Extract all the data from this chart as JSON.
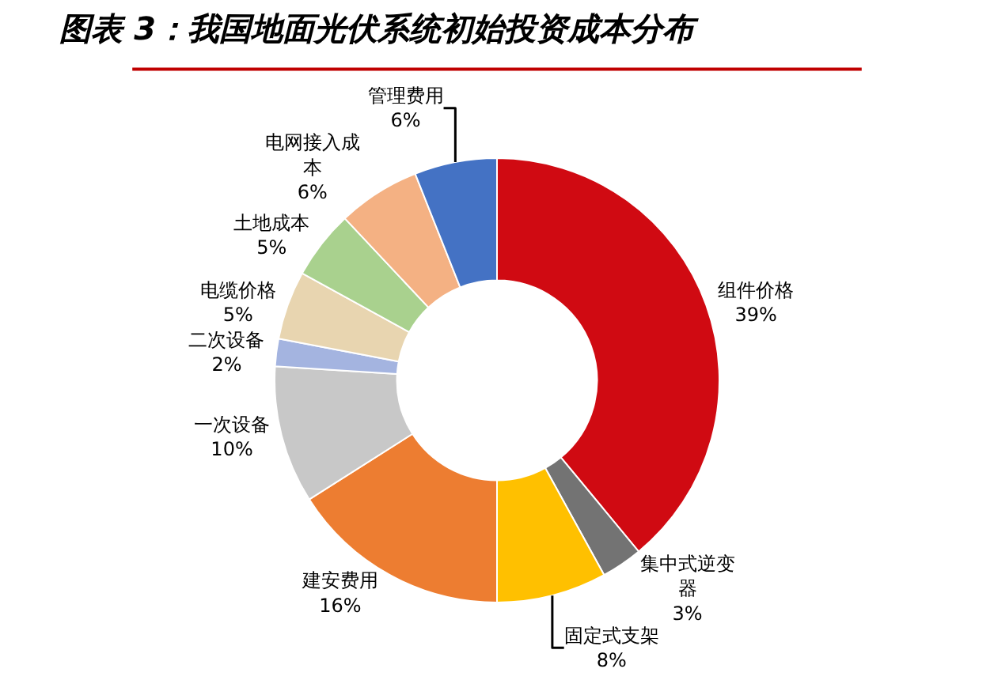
{
  "chart_data": {
    "type": "donut",
    "title": "图表 3：我国地面光伏系统初始投资成本分布",
    "categories": [
      "组件价格",
      "集中式逆变器",
      "固定式支架",
      "建安费用",
      "一次设备",
      "二次设备",
      "电缆价格",
      "土地成本",
      "电网接入成本",
      "管理费用"
    ],
    "values": [
      39,
      3,
      8,
      16,
      10,
      2,
      5,
      5,
      6,
      6
    ],
    "value_labels": [
      "39%",
      "3%",
      "8%",
      "16%",
      "10%",
      "2%",
      "5%",
      "5%",
      "6%",
      "6%"
    ],
    "colors": [
      "#d00a12",
      "#737373",
      "#ffc000",
      "#ed7d31",
      "#c8c8c8",
      "#a4b4e0",
      "#e8d5b0",
      "#a9d18e",
      "#f4b183",
      "#4472c4"
    ],
    "legend": false
  }
}
